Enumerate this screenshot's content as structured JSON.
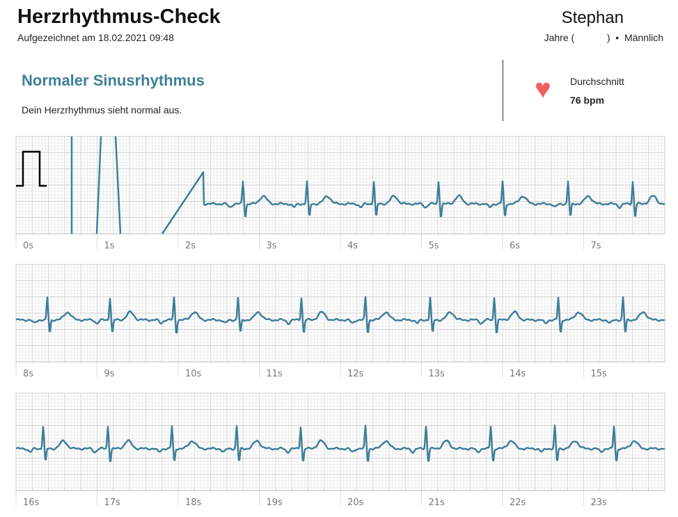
{
  "header": {
    "title": "Herzrhythmus-Check",
    "recorded": "Aufgezeichnet am 18.02.2021 09:48"
  },
  "user": {
    "name": "Stephan",
    "info": "Jahre (            )  •  Männlich"
  },
  "result": {
    "title": "Normaler Sinusrhythmus",
    "description": "Dein Herzrhythmus sieht normal aus."
  },
  "heart_rate": {
    "label": "Durchschnitt",
    "value": "76 bpm",
    "icon": "heart-icon",
    "color": "#f06060"
  },
  "ecg": {
    "trace_color": "#3f7f99",
    "seconds_per_strip": 8,
    "strips": [
      {
        "labels": [
          "0s",
          "1s",
          "2s",
          "3s",
          "4s",
          "5s",
          "6s",
          "7s"
        ]
      },
      {
        "labels": [
          "8s",
          "9s",
          "10s",
          "11s",
          "12s",
          "13s",
          "14s",
          "15s"
        ]
      },
      {
        "labels": [
          "16s",
          "17s",
          "18s",
          "19s",
          "20s",
          "21s",
          "22s",
          "23s"
        ]
      }
    ]
  }
}
